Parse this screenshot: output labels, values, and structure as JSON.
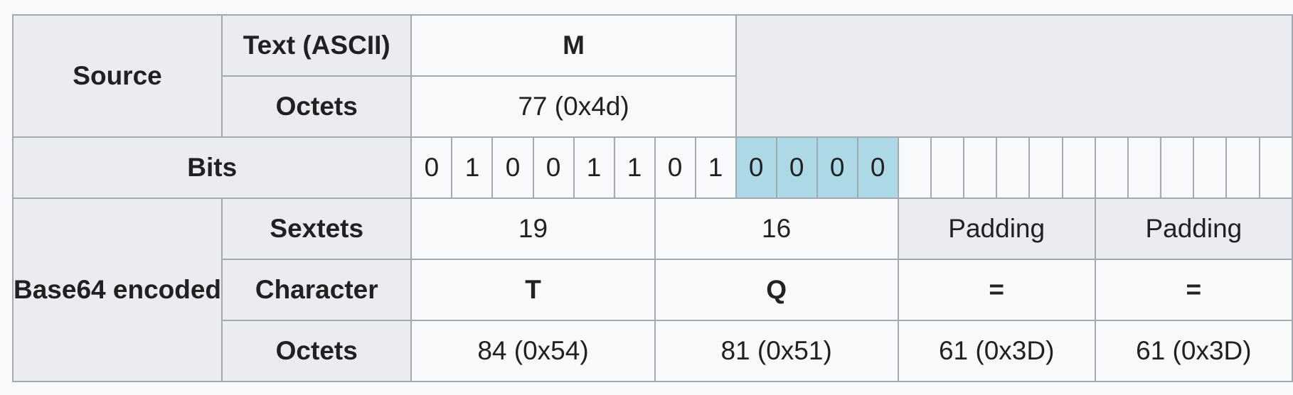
{
  "source": {
    "label": "Source",
    "text_label": "Text (ASCII)",
    "text_value": "M",
    "octets_label": "Octets",
    "octets_value": "77 (0x4d)"
  },
  "bits": {
    "label": "Bits",
    "values": [
      "0",
      "1",
      "0",
      "0",
      "1",
      "1",
      "0",
      "1",
      "0",
      "0",
      "0",
      "0"
    ],
    "padding_bit_highlight_color": "#add8e6"
  },
  "base64": {
    "label": "Base64 encoded",
    "sextets_label": "Sextets",
    "sextets": [
      "19",
      "16",
      "Padding",
      "Padding"
    ],
    "character_label": "Character",
    "characters": [
      "T",
      "Q",
      "=",
      "="
    ],
    "octets_label": "Octets",
    "octets": [
      "84 (0x54)",
      "81 (0x51)",
      "61 (0x3D)",
      "61 (0x3D)"
    ]
  }
}
